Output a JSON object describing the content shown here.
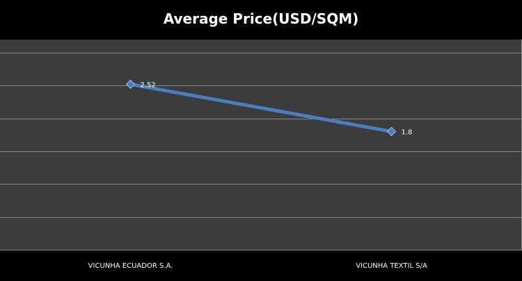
{
  "chart_data": {
    "type": "line",
    "title": "Average Price(USD/SQM)",
    "categories": [
      "VICUNHA ECUADOR S.A.",
      "VICUNHA TEXTIL S/A"
    ],
    "series": [
      {
        "values": [
          2.52,
          1.8
        ]
      }
    ],
    "data_labels": [
      "2.52",
      "1.8"
    ],
    "ylim": [
      0,
      3.2
    ],
    "y_tick_interval": 0.5,
    "grid": true,
    "legend": "none",
    "marker": "diamond",
    "colors": {
      "background": "#000000",
      "plot_area": "#3c3c3c",
      "gridline": "#8a8a8a",
      "line": "#4a7ebf",
      "marker": "#4a7ebf",
      "text": "#ffffff"
    }
  }
}
